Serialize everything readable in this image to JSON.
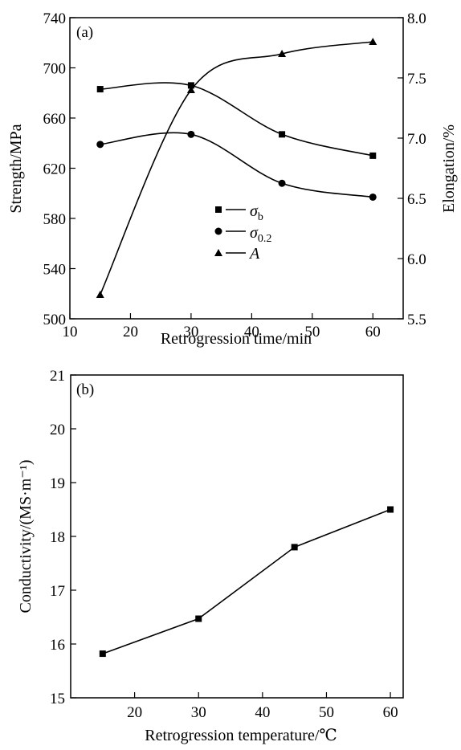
{
  "chart_data": [
    {
      "type": "line",
      "panel_label": "(a)",
      "xlabel": "Retrogression time/min",
      "ylabel": "Strength/MPa",
      "y2label": "Elongation/%",
      "xlim": [
        10,
        65
      ],
      "ylim": [
        500,
        740
      ],
      "y2lim": [
        5.5,
        8.0
      ],
      "xticks": [
        10,
        20,
        30,
        40,
        50,
        60
      ],
      "yticks": [
        500,
        540,
        580,
        620,
        660,
        700,
        740
      ],
      "y2ticks": [
        "5.5",
        "6.0",
        "6.5",
        "7.0",
        "7.5",
        "8.0"
      ],
      "x": [
        15,
        30,
        45,
        60
      ],
      "series": [
        {
          "name": "σ",
          "subscript": "b",
          "marker": "square",
          "axis": "left",
          "values": [
            683,
            686,
            647,
            630
          ]
        },
        {
          "name": "σ",
          "subscript": "0.2",
          "marker": "circle",
          "axis": "left",
          "values": [
            639,
            647,
            608,
            597
          ]
        },
        {
          "name": "A",
          "subscript": "",
          "marker": "triangle",
          "axis": "right",
          "values": [
            5.7,
            7.4,
            7.7,
            7.8
          ]
        }
      ],
      "legend_position": "center",
      "grid": false
    },
    {
      "type": "line",
      "panel_label": "(b)",
      "xlabel": "Retrogression temperature/℃",
      "ylabel": "Conductivity/(MS·m⁻¹)",
      "xlim": [
        10,
        62
      ],
      "ylim": [
        15,
        21
      ],
      "xticks": [
        20,
        30,
        40,
        50,
        60
      ],
      "yticks": [
        15,
        16,
        17,
        18,
        19,
        20,
        21
      ],
      "x": [
        15,
        30,
        45,
        60
      ],
      "series": [
        {
          "marker": "square",
          "values": [
            15.82,
            16.47,
            17.8,
            18.5
          ]
        }
      ],
      "grid": false
    }
  ]
}
